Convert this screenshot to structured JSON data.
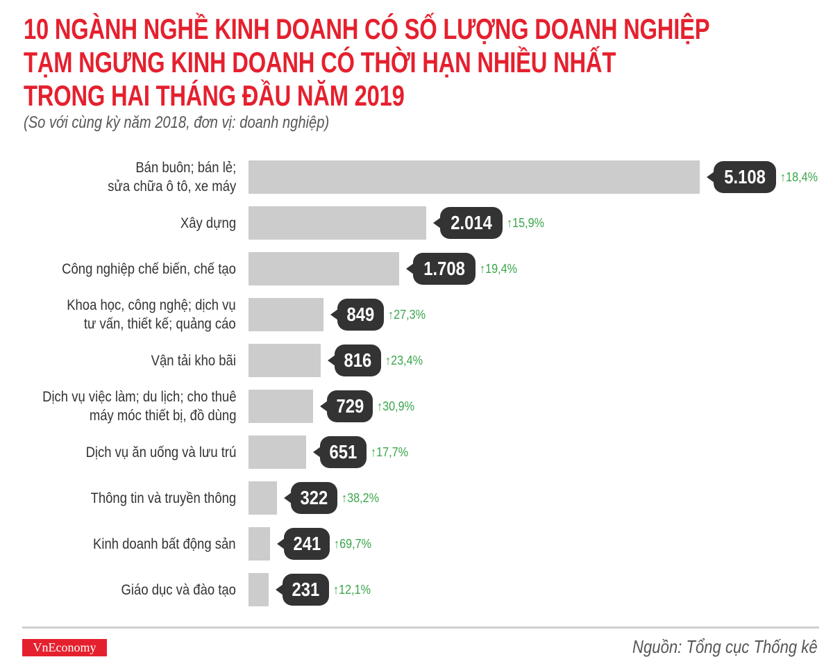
{
  "header": {
    "title_lines": [
      "10 NGÀNH NGHỀ KINH DOANH CÓ SỐ LƯỢNG DOANH NGHIỆP",
      "TẠM NGƯNG KINH DOANH CÓ THỜI HẠN NHIỀU NHẤT",
      "TRONG HAI THÁNG ĐẦU NĂM 2019"
    ],
    "subtitle": "(So với cùng kỳ năm 2018, đơn vị: doanh nghiệp)"
  },
  "chart_data": {
    "type": "bar",
    "orientation": "horizontal",
    "title": "10 NGÀNH NGHỀ KINH DOANH CÓ SỐ LƯỢNG DOANH NGHIỆP TẠM NGƯNG KINH DOANH CÓ THỜI HẠN NHIỀU NHẤT TRONG HAI THÁNG ĐẦU NĂM 2019",
    "subtitle": "(So với cùng kỳ năm 2018, đơn vị: doanh nghiệp)",
    "categories": [
      "Bán buôn; bán lẻ;\nsửa chữa ô tô, xe máy",
      "Xây dựng",
      "Công nghiệp chế biến, chế tạo",
      "Khoa học, công nghệ; dịch vụ\ntư vấn, thiết kế; quảng cáo",
      "Vận tải kho bãi",
      "Dịch vụ việc làm; du lịch; cho thuê\nmáy móc thiết bị, đồ dùng",
      "Dịch vụ ăn uống và lưu trú",
      "Thông tin và truyền thông",
      "Kinh doanh bất động sản",
      "Giáo dục và đào tạo"
    ],
    "values": [
      5108,
      2014,
      1708,
      849,
      816,
      729,
      651,
      322,
      241,
      231
    ],
    "value_labels": [
      "5.108",
      "2.014",
      "1.708",
      "849",
      "816",
      "729",
      "651",
      "322",
      "241",
      "231"
    ],
    "change_labels": [
      "↑18,4%",
      "↑15,9%",
      "↑19,4%",
      "↑27,3%",
      "↑23,4%",
      "↑30,9%",
      "↑17,7%",
      "↑38,2%",
      "↑69,7%",
      "↑12,1%"
    ],
    "xlim": [
      0,
      5108
    ],
    "grid": false,
    "colors": {
      "bar": "#cccccc",
      "bubble": "#333333",
      "change": "#3aa64a",
      "title": "#e5202e"
    }
  },
  "footer": {
    "logo": "VnEconomy",
    "source": "Nguồn: Tổng cục Thống kê"
  }
}
